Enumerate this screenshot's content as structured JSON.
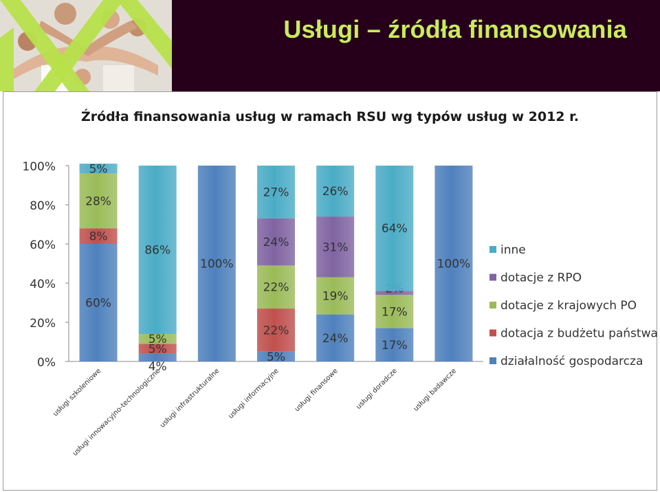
{
  "slide": {
    "title": "Usługi – źródła finansowania"
  },
  "colors": {
    "header_bg": "#26001a",
    "title": "#c9ec5d",
    "inne": "#4bacc6",
    "dotacje_rpo": "#8064a2",
    "dotacje_krajowe": "#9bbb59",
    "dotacja_budzet": "#c0504d",
    "dzialalnosc": "#4f81bd"
  },
  "chart_data": {
    "type": "bar",
    "stacked": true,
    "percent_stacked": true,
    "title": "Źródła finansowania usług w ramach RSU wg typów usług w 2012 r.",
    "categories": [
      "usługi szkoleniowe",
      "usługi innowacyjno-technologiczne",
      "usługi infrastrukturalne",
      "usługi informacyjne",
      "usługi finansowe",
      "usługi doradcze",
      "usługi badawcze"
    ],
    "series": [
      {
        "name": "działalność gospodarcza",
        "color": "#4f81bd",
        "values": [
          60,
          4,
          100,
          5,
          24,
          17,
          100
        ],
        "labels": [
          "60%",
          "4%",
          "100%",
          "5%",
          "24%",
          "17%",
          "100%"
        ]
      },
      {
        "name": "dotacja z budżetu państwa",
        "color": "#c0504d",
        "values": [
          8,
          5,
          0,
          22,
          0,
          0,
          0
        ],
        "labels": [
          "8%",
          "5%",
          "",
          "22%",
          "",
          "",
          ""
        ]
      },
      {
        "name": "dotacje z krajowych PO",
        "color": "#9bbb59",
        "values": [
          28,
          5,
          0,
          22,
          19,
          17,
          0
        ],
        "labels": [
          "28%",
          "5%",
          "",
          "22%",
          "19%",
          "17%",
          ""
        ]
      },
      {
        "name": "dotacje z RPO",
        "color": "#8064a2",
        "values": [
          0,
          0,
          0,
          24,
          31,
          2,
          0
        ],
        "labels": [
          "",
          "",
          "",
          "24%",
          "31%",
          "2%",
          ""
        ]
      },
      {
        "name": "inne",
        "color": "#4bacc6",
        "values": [
          5,
          86,
          0,
          27,
          26,
          64,
          0
        ],
        "labels": [
          "5%",
          "86%",
          "",
          "27%",
          "26%",
          "64%",
          ""
        ]
      }
    ],
    "y_ticks": [
      "0%",
      "20%",
      "40%",
      "60%",
      "80%",
      "100%"
    ],
    "ylim": [
      0,
      100
    ],
    "legend": [
      "inne",
      "dotacje z RPO",
      "dotacje z krajowych PO",
      "dotacja z budżetu państwa",
      "działalność gospodarcza"
    ],
    "legend_position": "right",
    "grid": false
  }
}
